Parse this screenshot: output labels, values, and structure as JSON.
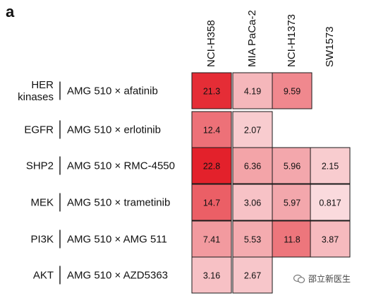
{
  "panel_label": "a",
  "watermark_text": "邵立新医生",
  "chart_data": {
    "type": "heatmap",
    "columns": [
      "NCI-H358",
      "MIA PaCa-2",
      "NCI-H1373",
      "SW1573"
    ],
    "rows": [
      {
        "target": "HER\nkinases",
        "combination": "AMG 510 × afatinib",
        "values": [
          21.3,
          4.19,
          9.59,
          null
        ]
      },
      {
        "target": "EGFR",
        "combination": "AMG 510 × erlotinib",
        "values": [
          12.4,
          2.07,
          null,
          null
        ]
      },
      {
        "target": "SHP2",
        "combination": "AMG 510 × RMC-4550",
        "values": [
          22.8,
          6.36,
          5.96,
          2.15
        ]
      },
      {
        "target": "MEK",
        "combination": "AMG 510 × trametinib",
        "values": [
          14.7,
          3.06,
          5.97,
          0.817
        ]
      },
      {
        "target": "PI3K",
        "combination": "AMG 510 × AMG 511",
        "values": [
          7.41,
          5.53,
          11.8,
          3.87
        ]
      },
      {
        "target": "AKT",
        "combination": "AMG 510 × AZD5363",
        "values": [
          3.16,
          2.67,
          null,
          null
        ]
      }
    ],
    "value_range": [
      0,
      23
    ],
    "colors": {
      "low": "#fbe6e8",
      "high": "#e3202a",
      "border": "#1a1a1a"
    }
  }
}
